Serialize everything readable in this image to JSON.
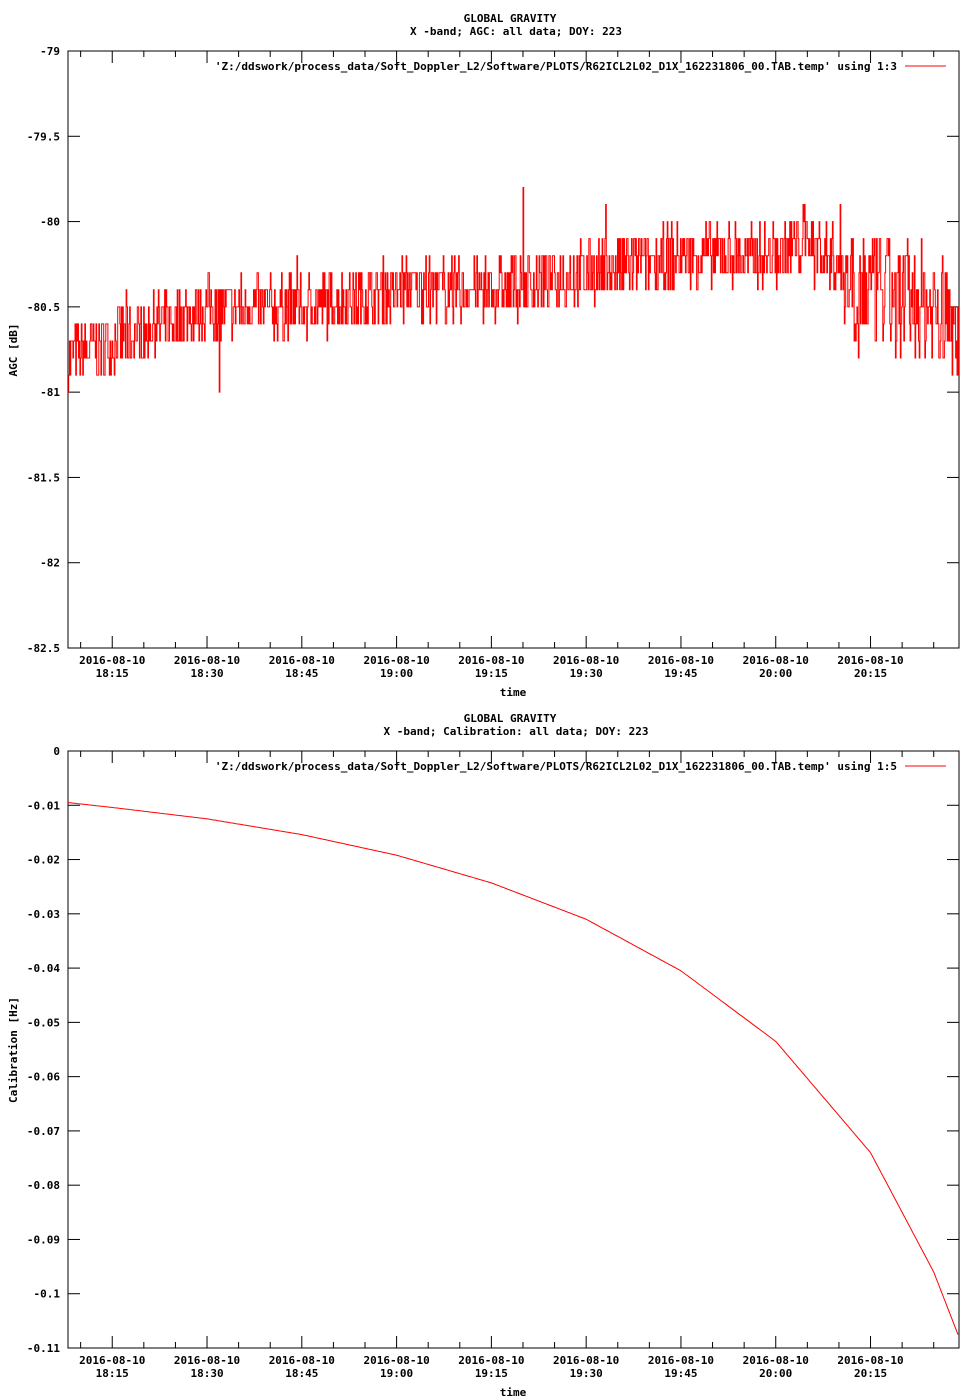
{
  "charts": [
    {
      "title": "GLOBAL GRAVITY",
      "subtitle": "X -band; AGC: all data; DOY: 223",
      "legend": "'Z:/ddswork/process_data/Soft_Doppler_L2/Software/PLOTS/R62ICL2L02_D1X_162231806_00.TAB.temp' using 1:3",
      "xlabel": "time",
      "ylabel": "AGC [dB]",
      "ytick_labels": [
        "-79",
        "-79.5",
        "-80",
        "-80.5",
        "-81",
        "-81.5",
        "-82",
        "-82.5"
      ],
      "xtick_dates": [
        "2016-08-10",
        "2016-08-10",
        "2016-08-10",
        "2016-08-10",
        "2016-08-10",
        "2016-08-10",
        "2016-08-10",
        "2016-08-10",
        "2016-08-10"
      ],
      "xtick_times": [
        "18:15",
        "18:30",
        "18:45",
        "19:00",
        "19:15",
        "19:30",
        "19:45",
        "20:00",
        "20:15"
      ]
    },
    {
      "title": "GLOBAL GRAVITY",
      "subtitle": "X -band; Calibration: all data; DOY: 223",
      "legend": "'Z:/ddswork/process_data/Soft_Doppler_L2/Software/PLOTS/R62ICL2L02_D1X_162231806_00.TAB.temp' using 1:5",
      "xlabel": "time",
      "ylabel": "Calibration [Hz]",
      "ytick_labels": [
        "0",
        "-0.01",
        "-0.02",
        "-0.03",
        "-0.04",
        "-0.05",
        "-0.06",
        "-0.07",
        "-0.08",
        "-0.09",
        "-0.1",
        "-0.11"
      ],
      "xtick_dates": [
        "2016-08-10",
        "2016-08-10",
        "2016-08-10",
        "2016-08-10",
        "2016-08-10",
        "2016-08-10",
        "2016-08-10",
        "2016-08-10",
        "2016-08-10"
      ],
      "xtick_times": [
        "18:15",
        "18:30",
        "18:45",
        "19:00",
        "19:15",
        "19:30",
        "19:45",
        "20:00",
        "20:15"
      ]
    }
  ],
  "chart_data": [
    {
      "type": "line",
      "color": "#ff0000",
      "x_tick_values": [
        "18:15",
        "18:30",
        "18:45",
        "19:00",
        "19:15",
        "19:30",
        "19:45",
        "20:00",
        "20:15"
      ],
      "xlim": [
        "18:08",
        "20:29"
      ],
      "ylim": [
        -82.5,
        -79
      ],
      "ytick_step": 0.5,
      "grid": false,
      "legend_position": "top-right",
      "series": [
        {
          "x": [
            "18:08",
            "18:15",
            "18:30",
            "18:45",
            "19:00",
            "19:15",
            "19:30",
            "19:45",
            "20:00",
            "20:05",
            "20:15",
            "20:25",
            "20:29"
          ],
          "y": [
            -80.8,
            -80.7,
            -80.5,
            -80.5,
            -80.4,
            -80.4,
            -80.3,
            -80.2,
            -80.2,
            -80.1,
            -80.4,
            -80.5,
            -80.6
          ]
        }
      ]
    },
    {
      "type": "line",
      "color": "#ff0000",
      "x_tick_values": [
        "18:15",
        "18:30",
        "18:45",
        "19:00",
        "19:15",
        "19:30",
        "19:45",
        "20:00",
        "20:15"
      ],
      "xlim": [
        "18:08",
        "20:29"
      ],
      "ylim": [
        -0.11,
        0
      ],
      "ytick_step": 0.01,
      "grid": false,
      "legend_position": "top-right",
      "series": [
        {
          "x": [
            "18:08",
            "18:15",
            "18:30",
            "18:45",
            "19:00",
            "19:15",
            "19:30",
            "19:45",
            "20:00",
            "20:15",
            "20:25",
            "20:29"
          ],
          "y": [
            -0.0095,
            -0.0104,
            -0.0125,
            -0.0154,
            -0.0192,
            -0.0243,
            -0.031,
            -0.0405,
            -0.0535,
            -0.074,
            -0.096,
            -0.108
          ]
        }
      ]
    }
  ]
}
